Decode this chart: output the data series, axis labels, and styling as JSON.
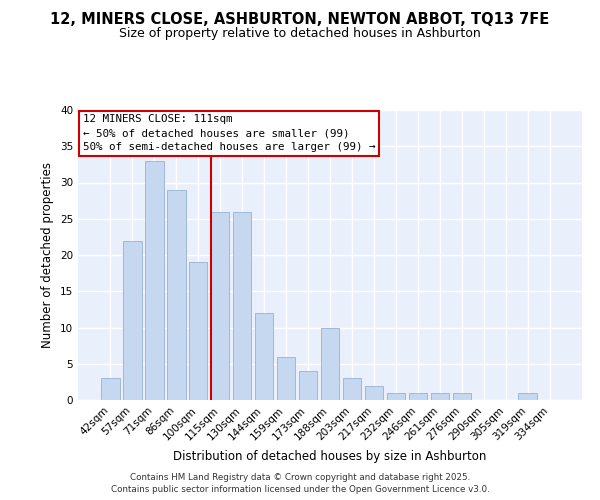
{
  "title_line1": "12, MINERS CLOSE, ASHBURTON, NEWTON ABBOT, TQ13 7FE",
  "title_line2": "Size of property relative to detached houses in Ashburton",
  "xlabel": "Distribution of detached houses by size in Ashburton",
  "ylabel": "Number of detached properties",
  "bar_labels": [
    "42sqm",
    "57sqm",
    "71sqm",
    "86sqm",
    "100sqm",
    "115sqm",
    "130sqm",
    "144sqm",
    "159sqm",
    "173sqm",
    "188sqm",
    "203sqm",
    "217sqm",
    "232sqm",
    "246sqm",
    "261sqm",
    "276sqm",
    "290sqm",
    "305sqm",
    "319sqm",
    "334sqm"
  ],
  "bar_values": [
    3,
    22,
    33,
    29,
    19,
    26,
    26,
    12,
    6,
    4,
    10,
    3,
    2,
    1,
    1,
    1,
    1,
    0,
    0,
    1,
    0
  ],
  "bar_color": "#c5d8f0",
  "bar_edge_color": "#a0b8d8",
  "vline_x_index": 5,
  "vline_color": "#cc0000",
  "ylim": [
    0,
    40
  ],
  "yticks": [
    0,
    5,
    10,
    15,
    20,
    25,
    30,
    35,
    40
  ],
  "annotation_title": "12 MINERS CLOSE: 111sqm",
  "annotation_line1": "← 50% of detached houses are smaller (99)",
  "annotation_line2": "50% of semi-detached houses are larger (99) →",
  "footnote1": "Contains HM Land Registry data © Crown copyright and database right 2025.",
  "footnote2": "Contains public sector information licensed under the Open Government Licence v3.0.",
  "background_color": "#ffffff",
  "plot_bg_color": "#eaf0fb"
}
